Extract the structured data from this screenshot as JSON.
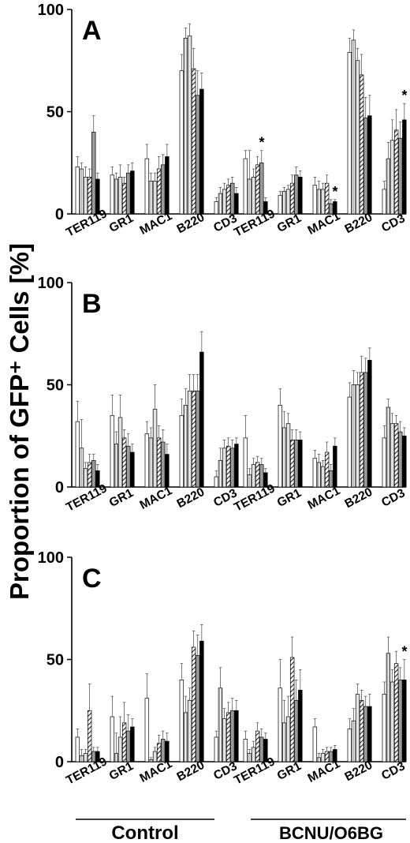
{
  "figure": {
    "ylabel": "Proportion of GFP⁺ Cells [%]",
    "groups": [
      "Control",
      "BCNU/O6BG"
    ]
  },
  "chart_data": [
    {
      "type": "bar",
      "title": "A",
      "ylim": [
        0,
        100
      ],
      "yticks": [
        0,
        50,
        100
      ],
      "categories": [
        "TER119",
        "GR1",
        "MAC1",
        "B220",
        "CD3"
      ],
      "groups": [
        "Control",
        "BCNU/O6BG"
      ],
      "bar_fills": [
        "white",
        "lines",
        "light",
        "hatch",
        "gray",
        "black"
      ],
      "control": [
        {
          "category": "TER119",
          "values": [
            23,
            22,
            18,
            18,
            40,
            17
          ],
          "errors": [
            5,
            3,
            5,
            4,
            8,
            3
          ]
        },
        {
          "category": "GR1",
          "values": [
            19,
            17,
            18,
            15,
            20,
            21
          ],
          "errors": [
            4,
            3,
            6,
            3,
            4,
            4
          ]
        },
        {
          "category": "MAC1",
          "values": [
            27,
            16,
            16,
            22,
            24,
            28
          ],
          "errors": [
            7,
            4,
            4,
            6,
            5,
            6
          ]
        },
        {
          "category": "B220",
          "values": [
            70,
            86,
            87,
            71,
            58,
            61
          ],
          "errors": [
            8,
            5,
            6,
            10,
            12,
            8
          ]
        },
        {
          "category": "CD3",
          "values": [
            6,
            10,
            12,
            14,
            15,
            10
          ],
          "errors": [
            2,
            3,
            3,
            3,
            3,
            3
          ]
        }
      ],
      "treated": [
        {
          "category": "TER119",
          "values": [
            27,
            17,
            18,
            24,
            25,
            6
          ],
          "errors": [
            4,
            14,
            4,
            4,
            6,
            2
          ]
        },
        {
          "category": "GR1",
          "values": [
            9,
            11,
            12,
            15,
            19,
            18
          ],
          "errors": [
            2,
            2,
            2,
            4,
            4,
            3
          ]
        },
        {
          "category": "MAC1",
          "values": [
            14,
            12,
            12,
            15,
            5,
            6
          ],
          "errors": [
            4,
            4,
            3,
            4,
            2,
            1
          ]
        },
        {
          "category": "B220",
          "values": [
            79,
            85,
            75,
            68,
            47,
            48
          ],
          "errors": [
            7,
            5,
            6,
            10,
            10,
            10
          ]
        },
        {
          "category": "CD3",
          "values": [
            12,
            27,
            36,
            41,
            37,
            46
          ],
          "errors": [
            4,
            8,
            10,
            10,
            8,
            8
          ]
        }
      ],
      "significance": [
        {
          "group": "BCNU/O6BG",
          "category": "TER119",
          "bar": 4,
          "label": "*"
        },
        {
          "group": "BCNU/O6BG",
          "category": "MAC1",
          "bar": 5,
          "label": "*"
        },
        {
          "group": "BCNU/O6BG",
          "category": "CD3",
          "bar": 5,
          "label": "*"
        }
      ]
    },
    {
      "type": "bar",
      "title": "B",
      "ylim": [
        0,
        100
      ],
      "yticks": [
        0,
        50,
        100
      ],
      "categories": [
        "TER119",
        "GR1",
        "MAC1",
        "B220",
        "CD3"
      ],
      "groups": [
        "Control",
        "BCNU/O6BG"
      ],
      "bar_fills": [
        "white",
        "lines",
        "light",
        "hatch",
        "gray",
        "black"
      ],
      "control": [
        {
          "category": "TER119",
          "values": [
            32,
            19,
            9,
            12,
            13,
            8
          ],
          "errors": [
            10,
            14,
            3,
            4,
            3,
            3
          ]
        },
        {
          "category": "GR1",
          "values": [
            35,
            21,
            34,
            24,
            20,
            17
          ],
          "errors": [
            10,
            6,
            11,
            4,
            6,
            4
          ]
        },
        {
          "category": "MAC1",
          "values": [
            26,
            24,
            38,
            24,
            22,
            16
          ],
          "errors": [
            6,
            5,
            12,
            6,
            6,
            5
          ]
        },
        {
          "category": "B220",
          "values": [
            35,
            40,
            47,
            47,
            47,
            66
          ],
          "errors": [
            8,
            8,
            8,
            8,
            8,
            10
          ]
        },
        {
          "category": "CD3",
          "values": [
            5,
            13,
            19,
            20,
            19,
            21
          ],
          "errors": [
            3,
            6,
            4,
            4,
            4,
            3
          ]
        }
      ],
      "treated": [
        {
          "category": "TER119",
          "values": [
            24,
            6,
            11,
            12,
            11,
            7
          ],
          "errors": [
            11,
            3,
            3,
            3,
            3,
            2
          ]
        },
        {
          "category": "GR1",
          "values": [
            40,
            29,
            31,
            23,
            23,
            23
          ],
          "errors": [
            8,
            8,
            5,
            5,
            5,
            4
          ]
        },
        {
          "category": "MAC1",
          "values": [
            14,
            12,
            10,
            17,
            8,
            20
          ],
          "errors": [
            4,
            4,
            3,
            5,
            3,
            4
          ]
        },
        {
          "category": "B220",
          "values": [
            44,
            50,
            50,
            56,
            56,
            62
          ],
          "errors": [
            7,
            7,
            6,
            8,
            7,
            6
          ]
        },
        {
          "category": "CD3",
          "values": [
            24,
            39,
            31,
            31,
            27,
            25
          ],
          "errors": [
            6,
            4,
            5,
            4,
            5,
            4
          ]
        }
      ],
      "significance": []
    },
    {
      "type": "bar",
      "title": "C",
      "ylim": [
        0,
        100
      ],
      "yticks": [
        0,
        50,
        100
      ],
      "categories": [
        "TER119",
        "GR1",
        "MAC1",
        "B220",
        "CD3"
      ],
      "groups": [
        "Control",
        "BCNU/O6BG"
      ],
      "bar_fills": [
        "white",
        "lines",
        "light",
        "hatch",
        "gray",
        "black"
      ],
      "control": [
        {
          "category": "TER119",
          "values": [
            12,
            3,
            4,
            25,
            5,
            5
          ],
          "errors": [
            4,
            3,
            2,
            13,
            2,
            2
          ]
        },
        {
          "category": "GR1",
          "values": [
            22,
            4,
            12,
            19,
            15,
            17
          ],
          "errors": [
            10,
            10,
            10,
            10,
            8,
            4
          ]
        },
        {
          "category": "MAC1",
          "values": [
            31,
            1,
            5,
            9,
            11,
            10
          ],
          "errors": [
            12,
            1,
            2,
            4,
            4,
            4
          ]
        },
        {
          "category": "B220",
          "values": [
            40,
            24,
            30,
            56,
            52,
            59
          ],
          "errors": [
            8,
            8,
            6,
            8,
            10,
            8
          ]
        },
        {
          "category": "CD3",
          "values": [
            12,
            36,
            21,
            24,
            25,
            25
          ],
          "errors": [
            3,
            10,
            5,
            5,
            6,
            5
          ]
        }
      ],
      "treated": [
        {
          "category": "TER119",
          "values": [
            11,
            4,
            7,
            15,
            12,
            11
          ],
          "errors": [
            4,
            2,
            3,
            4,
            4,
            3
          ]
        },
        {
          "category": "GR1",
          "values": [
            36,
            19,
            22,
            51,
            30,
            35
          ],
          "errors": [
            14,
            11,
            10,
            10,
            10,
            10
          ]
        },
        {
          "category": "MAC1",
          "values": [
            17,
            2,
            4,
            5,
            5,
            6
          ],
          "errors": [
            4,
            2,
            2,
            2,
            2,
            2
          ]
        },
        {
          "category": "B220",
          "values": [
            16,
            20,
            33,
            30,
            27,
            27
          ],
          "errors": [
            5,
            6,
            5,
            5,
            5,
            6
          ]
        },
        {
          "category": "CD3",
          "values": [
            33,
            53,
            39,
            48,
            40,
            40
          ],
          "errors": [
            6,
            8,
            6,
            6,
            6,
            10
          ]
        }
      ],
      "significance": [
        {
          "group": "BCNU/O6BG",
          "category": "CD3",
          "bar": 5,
          "label": "*"
        }
      ]
    }
  ]
}
